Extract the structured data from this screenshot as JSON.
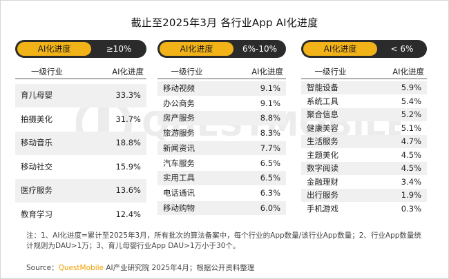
{
  "title": "截止至2025年3月 各行业App AI化进度",
  "header_labels": {
    "industry": "一级行业",
    "progress": "AI化进度"
  },
  "colors": {
    "accent": "#f2b319",
    "pill_dark": "#2b2b2b",
    "shaded_row": "#f0f0f0"
  },
  "chart_data": [
    {
      "type": "table",
      "pill_label": "AI化进度",
      "range_label": "≥10%",
      "categories": [
        "育儿母婴",
        "拍摄美化",
        "移动音乐",
        "移动社交",
        "医疗服务",
        "教育学习"
      ],
      "values": [
        33.3,
        31.7,
        18.8,
        15.9,
        13.6,
        12.4
      ],
      "value_labels": [
        "33.3%",
        "31.7%",
        "18.8%",
        "15.9%",
        "13.6%",
        "12.4%"
      ]
    },
    {
      "type": "table",
      "pill_label": "AI化进度",
      "range_label": "6%-10%",
      "categories": [
        "移动视频",
        "办公商务",
        "房产服务",
        "旅游服务",
        "新闻资讯",
        "汽车服务",
        "实用工具",
        "电话通讯",
        "移动购物"
      ],
      "values": [
        9.1,
        9.1,
        8.8,
        8.3,
        7.7,
        6.5,
        6.5,
        6.3,
        6.0
      ],
      "value_labels": [
        "9.1%",
        "9.1%",
        "8.8%",
        "8.3%",
        "7.7%",
        "6.5%",
        "6.5%",
        "6.3%",
        "6.0%"
      ]
    },
    {
      "type": "table",
      "pill_label": "AI化进度",
      "range_label": "< 6%",
      "categories": [
        "智能设备",
        "系统工具",
        "聚合信息",
        "健康美容",
        "生活服务",
        "主题美化",
        "数字阅读",
        "金融理财",
        "出行服务",
        "手机游戏"
      ],
      "values": [
        5.9,
        5.4,
        5.2,
        5.1,
        4.7,
        4.5,
        4.5,
        3.4,
        1.9,
        0.3
      ],
      "value_labels": [
        "5.9%",
        "5.4%",
        "5.2%",
        "5.1%",
        "4.7%",
        "4.5%",
        "4.5%",
        "3.4%",
        "1.9%",
        "0.3%"
      ]
    }
  ],
  "note": {
    "line1": "注：1、AI化进度=累计至2025年3月，所有批次的算法备案中，每个行业的App数量/该行业App数量；2、行业App数量统",
    "line2": "计规则为DAU>1万；3、育儿母婴行业App DAU>1万小于30个。"
  },
  "source": {
    "prefix": "Source：",
    "brand": "QuestMobile",
    "suffix": "AI产业研究院 2025年4月；根据公开资料整理"
  },
  "watermark": "QUESTMOBILE"
}
